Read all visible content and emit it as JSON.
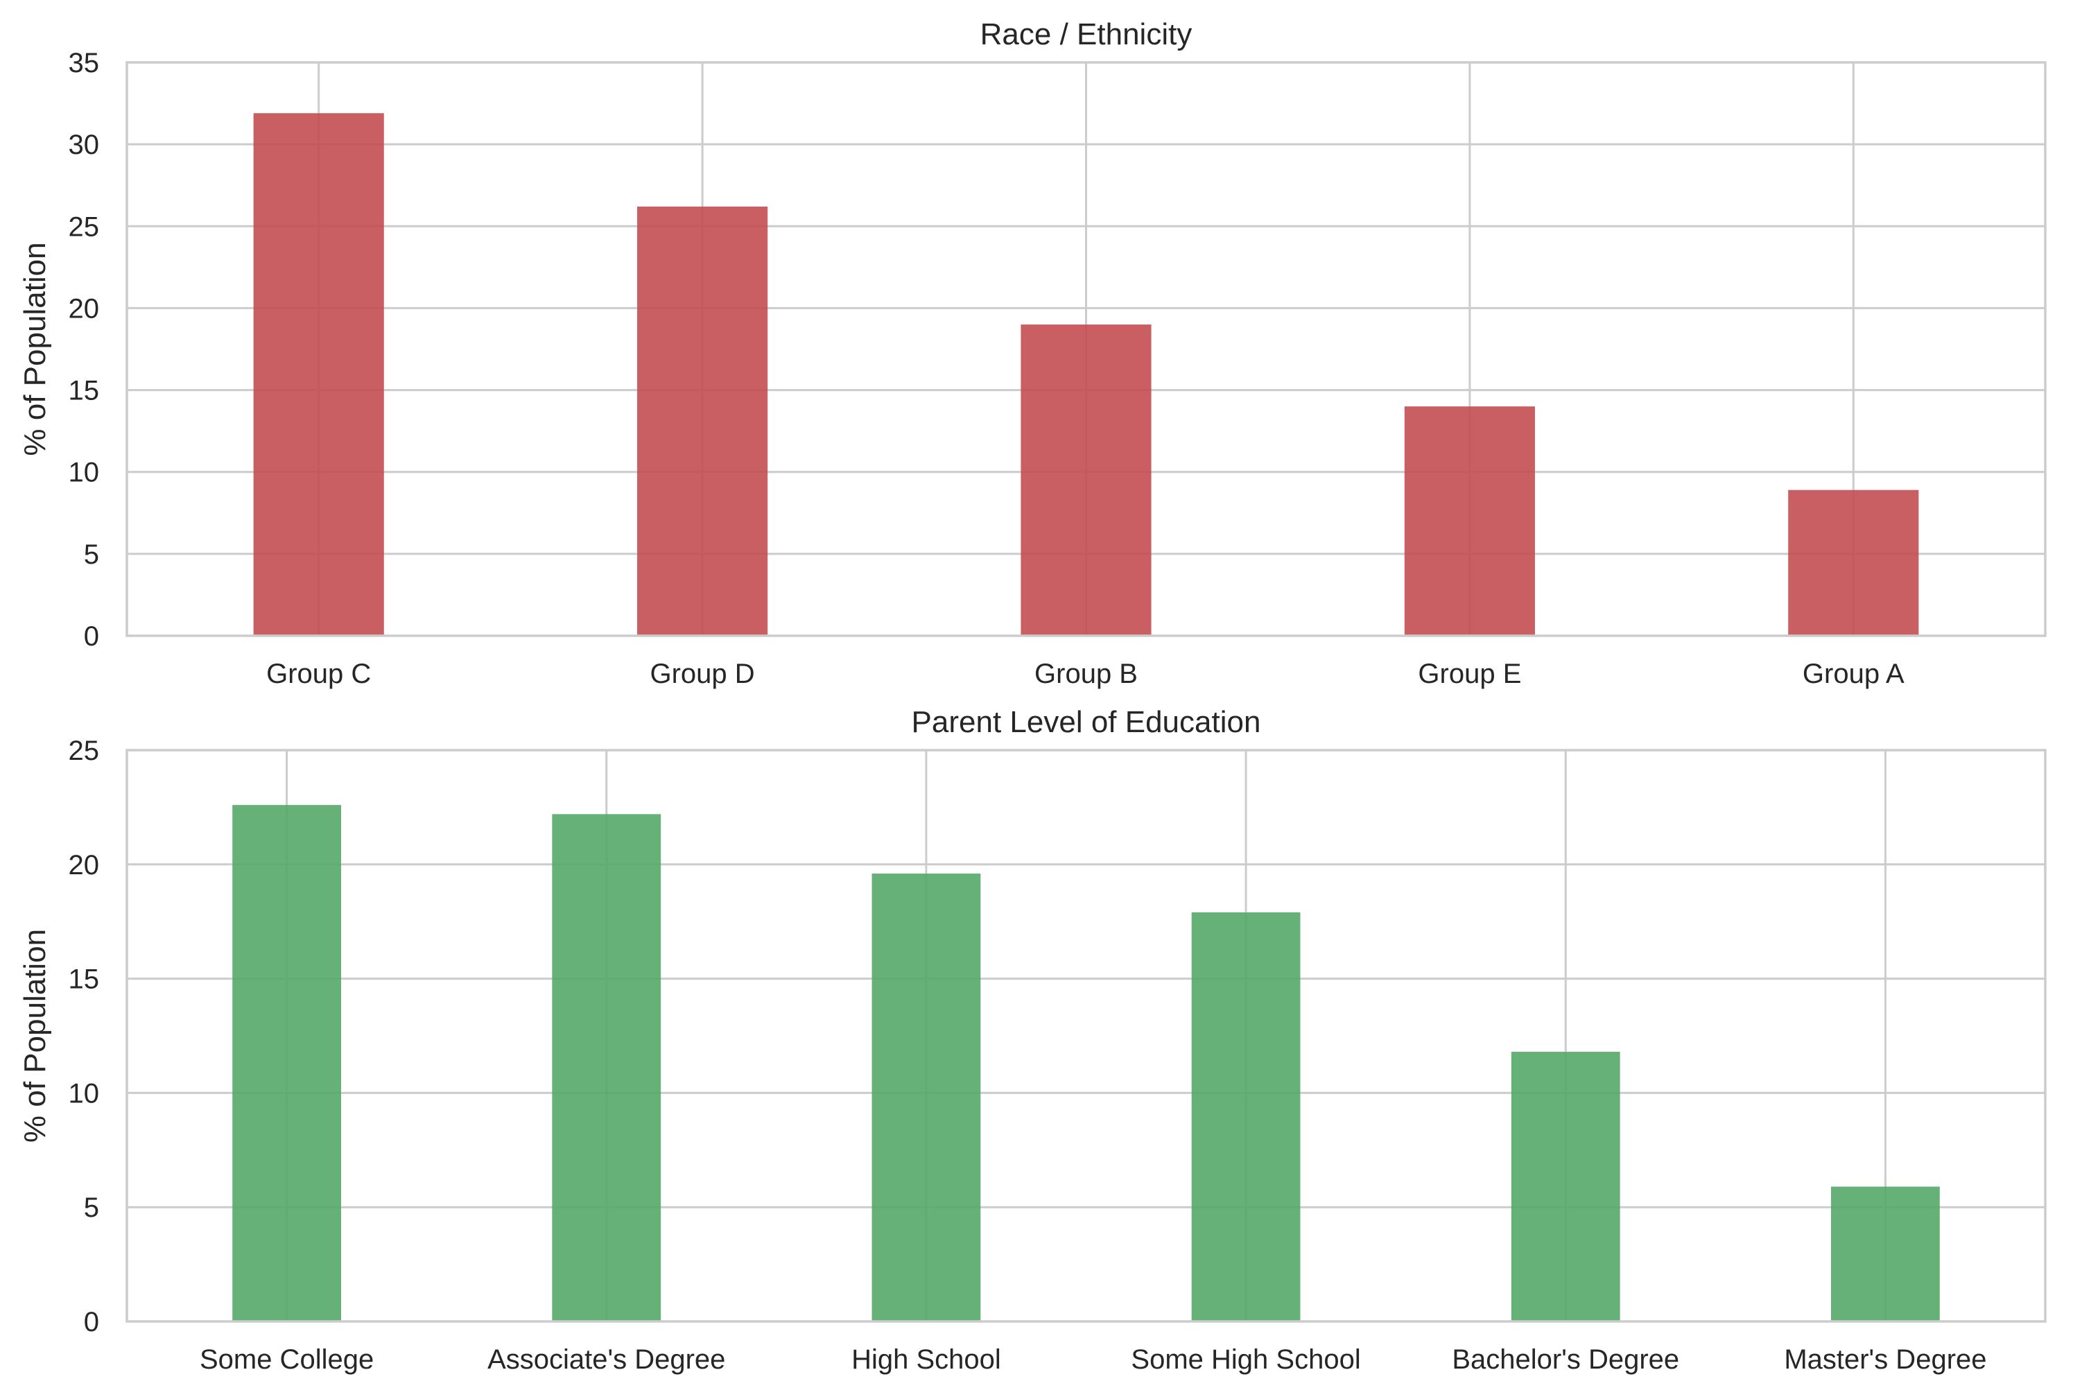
{
  "chart_data": [
    {
      "type": "bar",
      "title": "Race / Ethnicity",
      "xlabel": "",
      "ylabel": "% of Population",
      "categories": [
        "Group C",
        "Group D",
        "Group B",
        "Group E",
        "Group A"
      ],
      "values": [
        31.9,
        26.2,
        19.0,
        14.0,
        8.9
      ],
      "ylim": [
        0,
        35
      ],
      "yticks": [
        0,
        5,
        10,
        15,
        20,
        25,
        30,
        35
      ],
      "color": "#c44e52",
      "grid": true
    },
    {
      "type": "bar",
      "title": "Parent Level of Education",
      "xlabel": "",
      "ylabel": "% of Population",
      "categories": [
        "Some College",
        "Associate's Degree",
        "High School",
        "Some High School",
        "Bachelor's Degree",
        "Master's Degree"
      ],
      "values": [
        22.6,
        22.2,
        19.6,
        17.9,
        11.8,
        5.9
      ],
      "ylim": [
        0,
        25
      ],
      "yticks": [
        0,
        5,
        10,
        15,
        20,
        25
      ],
      "color": "#55a868",
      "grid": true
    }
  ]
}
